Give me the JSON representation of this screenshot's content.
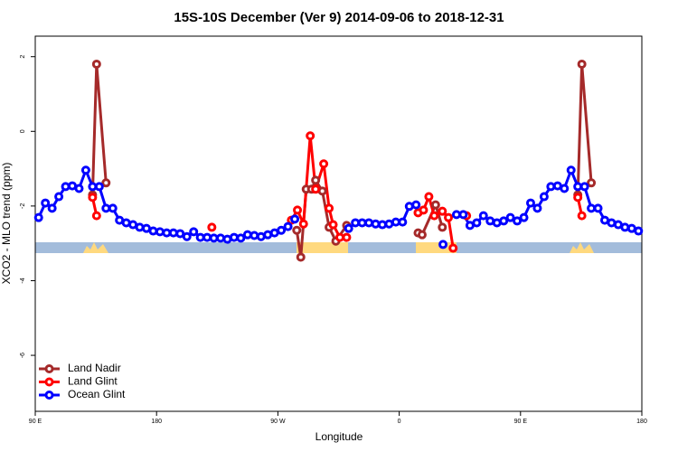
{
  "chart_data": {
    "type": "line",
    "title": "15S-10S December (Ver 9)   2014-09-06 to 2018-12-31",
    "x_label": "Longitude",
    "y_label": "XCO2 - MLO trend (ppm)",
    "xlim": [
      90,
      540
    ],
    "ylim": [
      -7.5,
      2.55
    ],
    "xticks": [
      {
        "value": 90,
        "label": "90 E"
      },
      180,
      {
        "value": 270,
        "label": "90 W"
      },
      {
        "value": 360,
        "label": "0"
      },
      {
        "value": 450,
        "label": "90 E"
      },
      {
        "value": 540,
        "label": "180"
      }
    ],
    "yticks": [
      2,
      0,
      -2,
      -4,
      -6
    ],
    "legend": "bottom-left",
    "grid": false,
    "series": [
      {
        "name": "Land Nadir",
        "color": "#a52a2a",
        "x": [
          132.5,
          135.5,
          142.5,
          200,
          284,
          287,
          291,
          295,
          298,
          303,
          308,
          313,
          321,
          350,
          374,
          377,
          387,
          392,
          450,
          492.5,
          495.5,
          502.5
        ],
        "values": [
          -1.7,
          1.8,
          -1.38,
          null,
          -2.65,
          -3.37,
          -1.55,
          -1.55,
          -1.31,
          -1.6,
          -2.57,
          -2.94,
          -2.52,
          null,
          -2.72,
          -2.77,
          -1.97,
          -2.57,
          null,
          -1.7,
          1.8,
          -1.38
        ]
      },
      {
        "name": "Land Glint",
        "color": "#ff0000",
        "x": [
          132.5,
          135.5,
          180,
          221,
          250,
          280,
          284.5,
          289,
          294,
          298,
          304,
          308,
          311,
          316,
          321,
          350,
          374,
          378,
          382,
          386,
          392,
          396.5,
          400,
          405,
          410,
          450,
          492.5,
          495.5
        ],
        "values": [
          -1.77,
          -2.26,
          null,
          -2.57,
          null,
          -2.38,
          -2.11,
          -2.48,
          -0.12,
          -1.55,
          -0.87,
          -2.06,
          -2.5,
          -2.84,
          -2.84,
          null,
          -2.18,
          -2.11,
          -1.75,
          -2.26,
          -2.14,
          -2.31,
          -3.13,
          null,
          -2.26,
          null,
          -1.77,
          -2.26
        ]
      },
      {
        "name": "Ocean Glint",
        "color": "#0000ff",
        "x": [
          92.5,
          97.5,
          102.5,
          107.5,
          112.5,
          117.5,
          122.5,
          127.5,
          132.5,
          137.5,
          142.5,
          147.5,
          152.5,
          157.5,
          162.5,
          167.5,
          172.5,
          177.5,
          182.5,
          187.5,
          192.5,
          197.5,
          202.5,
          207.5,
          212.5,
          217.5,
          222.5,
          227.5,
          232.5,
          237.5,
          242.5,
          247.5,
          252.5,
          257.5,
          262.5,
          267.5,
          272.5,
          277.5,
          282.5,
          300,
          322.5,
          327.5,
          332.5,
          337.5,
          342.5,
          347.5,
          352.5,
          357.5,
          362.5,
          367.5,
          372.5,
          380,
          392.5,
          397.5,
          402.5,
          407.5,
          412.5,
          417.5,
          422.5,
          427.5,
          432.5,
          437.5,
          442.5,
          447.5,
          452.5,
          457.5,
          462.5,
          467.5,
          472.5,
          477.5,
          482.5,
          487.5,
          492.5,
          497.5,
          502.5,
          507.5,
          512.5,
          517.5,
          522.5,
          527.5,
          532.5,
          537.5
        ],
        "values": [
          -2.31,
          -1.92,
          -2.06,
          -1.75,
          -1.48,
          -1.46,
          -1.53,
          -1.04,
          -1.48,
          -1.48,
          -2.06,
          -2.06,
          -2.38,
          -2.45,
          -2.5,
          -2.57,
          -2.6,
          -2.67,
          -2.69,
          -2.72,
          -2.72,
          -2.74,
          -2.82,
          -2.69,
          -2.84,
          -2.84,
          -2.86,
          -2.86,
          -2.89,
          -2.84,
          -2.86,
          -2.77,
          -2.79,
          -2.82,
          -2.77,
          -2.72,
          -2.65,
          -2.55,
          -2.35,
          null,
          -2.6,
          -2.45,
          -2.45,
          -2.45,
          -2.48,
          -2.5,
          -2.48,
          -2.43,
          -2.43,
          -2.01,
          -1.97,
          null,
          -3.03,
          null,
          -2.23,
          -2.23,
          -2.52,
          -2.45,
          -2.26,
          -2.4,
          -2.45,
          -2.4,
          -2.31,
          -2.4,
          -2.31,
          -1.92,
          -2.06,
          -1.75,
          -1.48,
          -1.46,
          -1.53,
          -1.04,
          -1.48,
          -1.48,
          -2.06,
          -2.06,
          -2.38,
          -2.45,
          -2.5,
          -2.57,
          -2.6,
          -2.67
        ]
      }
    ]
  }
}
